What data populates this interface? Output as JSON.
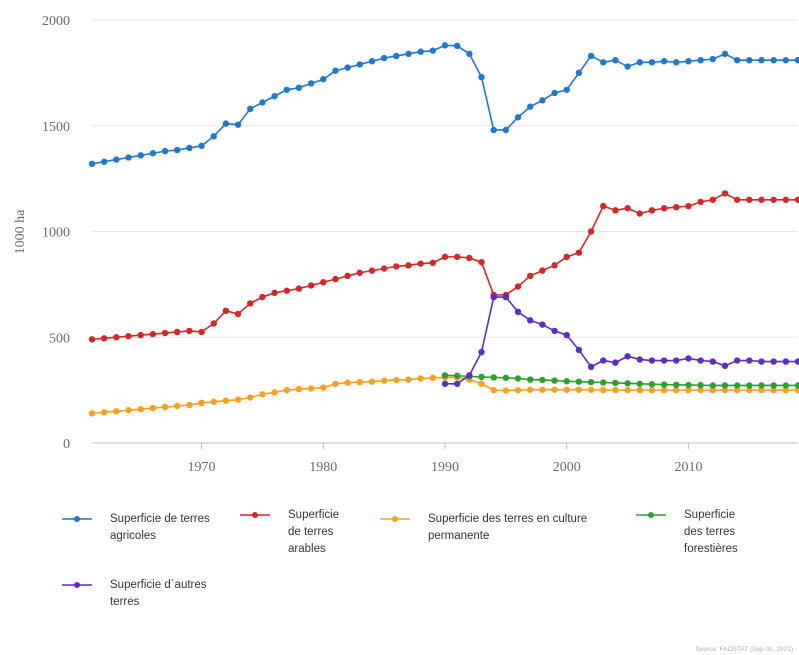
{
  "chart_data": {
    "type": "line",
    "ylabel": "1000 ha",
    "ylim": [
      0,
      2000
    ],
    "xlim": [
      1961,
      2019
    ],
    "yticks": [
      0,
      500,
      1000,
      1500,
      2000
    ],
    "xticks": [
      1970,
      1980,
      1990,
      2000,
      2010
    ],
    "grid": "horizontal",
    "legend_position": "bottom",
    "series": [
      {
        "name": "Superficie de terres agricoles",
        "color": "#1f77d4",
        "x": [
          1961,
          1962,
          1963,
          1964,
          1965,
          1966,
          1967,
          1968,
          1969,
          1970,
          1971,
          1972,
          1973,
          1974,
          1975,
          1976,
          1977,
          1978,
          1979,
          1980,
          1981,
          1982,
          1983,
          1984,
          1985,
          1986,
          1987,
          1988,
          1989,
          1990,
          1991,
          1992,
          1993,
          1994,
          1995,
          1996,
          1997,
          1998,
          1999,
          2000,
          2001,
          2002,
          2003,
          2004,
          2005,
          2006,
          2007,
          2008,
          2009,
          2010,
          2011,
          2012,
          2013,
          2014,
          2015,
          2016,
          2017,
          2018,
          2019
        ],
        "y": [
          1320,
          1330,
          1340,
          1350,
          1360,
          1370,
          1380,
          1385,
          1395,
          1405,
          1450,
          1510,
          1505,
          1580,
          1610,
          1640,
          1670,
          1680,
          1700,
          1720,
          1760,
          1775,
          1790,
          1805,
          1820,
          1830,
          1840,
          1850,
          1855,
          1880,
          1878,
          1840,
          1730,
          1480,
          1480,
          1540,
          1590,
          1620,
          1655,
          1670,
          1750,
          1830,
          1800,
          1810,
          1780,
          1800,
          1800,
          1805,
          1800,
          1805,
          1810,
          1815,
          1840,
          1810,
          1810,
          1810,
          1810,
          1810,
          1810
        ]
      },
      {
        "name": "Superficie de terres arables",
        "color": "#d62728",
        "x": [
          1961,
          1962,
          1963,
          1964,
          1965,
          1966,
          1967,
          1968,
          1969,
          1970,
          1971,
          1972,
          1973,
          1974,
          1975,
          1976,
          1977,
          1978,
          1979,
          1980,
          1981,
          1982,
          1983,
          1984,
          1985,
          1986,
          1987,
          1988,
          1989,
          1990,
          1991,
          1992,
          1993,
          1994,
          1995,
          1996,
          1997,
          1998,
          1999,
          2000,
          2001,
          2002,
          2003,
          2004,
          2005,
          2006,
          2007,
          2008,
          2009,
          2010,
          2011,
          2012,
          2013,
          2014,
          2015,
          2016,
          2017,
          2018,
          2019
        ],
        "y": [
          490,
          495,
          500,
          505,
          510,
          515,
          520,
          525,
          530,
          525,
          565,
          625,
          610,
          660,
          690,
          710,
          720,
          730,
          745,
          760,
          775,
          790,
          805,
          815,
          825,
          835,
          840,
          848,
          852,
          880,
          880,
          875,
          855,
          700,
          700,
          740,
          790,
          815,
          840,
          880,
          900,
          1000,
          1120,
          1100,
          1110,
          1085,
          1100,
          1110,
          1115,
          1120,
          1140,
          1150,
          1180,
          1150,
          1150,
          1150,
          1150,
          1150,
          1150
        ]
      },
      {
        "name": "Superficie des terres en culture permanente",
        "color": "#ff9f1a",
        "x": [
          1961,
          1962,
          1963,
          1964,
          1965,
          1966,
          1967,
          1968,
          1969,
          1970,
          1971,
          1972,
          1973,
          1974,
          1975,
          1976,
          1977,
          1978,
          1979,
          1980,
          1981,
          1982,
          1983,
          1984,
          1985,
          1986,
          1987,
          1988,
          1989,
          1990,
          1991,
          1992,
          1993,
          1994,
          1995,
          1996,
          1997,
          1998,
          1999,
          2000,
          2001,
          2002,
          2003,
          2004,
          2005,
          2006,
          2007,
          2008,
          2009,
          2010,
          2011,
          2012,
          2013,
          2014,
          2015,
          2016,
          2017,
          2018,
          2019
        ],
        "y": [
          140,
          145,
          150,
          155,
          160,
          165,
          170,
          175,
          180,
          190,
          195,
          200,
          205,
          215,
          230,
          240,
          250,
          255,
          258,
          262,
          280,
          285,
          288,
          290,
          295,
          298,
          300,
          305,
          308,
          310,
          310,
          300,
          280,
          250,
          248,
          250,
          252,
          252,
          252,
          252,
          252,
          252,
          250,
          250,
          250,
          250,
          250,
          250,
          250,
          250,
          250,
          250,
          250,
          250,
          250,
          250,
          250,
          250,
          250
        ]
      },
      {
        "name": "Superficie des terres forestières",
        "color": "#2ca02c",
        "x": [
          1990,
          1991,
          1992,
          1993,
          1994,
          1995,
          1996,
          1997,
          1998,
          1999,
          2000,
          2001,
          2002,
          2003,
          2004,
          2005,
          2006,
          2007,
          2008,
          2009,
          2010,
          2011,
          2012,
          2013,
          2014,
          2015,
          2016,
          2017,
          2018,
          2019
        ],
        "y": [
          320,
          318,
          315,
          312,
          310,
          308,
          305,
          300,
          298,
          295,
          292,
          290,
          288,
          286,
          284,
          282,
          280,
          278,
          276,
          275,
          274,
          273,
          272,
          272,
          272,
          272,
          272,
          272,
          272,
          272
        ]
      },
      {
        "name": "Superficie d`autres terres",
        "color": "#5b2dc8",
        "x": [
          1990,
          1991,
          1992,
          1993,
          1994,
          1995,
          1996,
          1997,
          1998,
          1999,
          2000,
          2001,
          2002,
          2003,
          2004,
          2005,
          2006,
          2007,
          2008,
          2009,
          2010,
          2011,
          2012,
          2013,
          2014,
          2015,
          2016,
          2017,
          2018,
          2019
        ],
        "y": [
          280,
          280,
          320,
          430,
          690,
          690,
          620,
          580,
          560,
          530,
          510,
          440,
          360,
          390,
          380,
          410,
          395,
          390,
          390,
          390,
          400,
          390,
          385,
          365,
          390,
          390,
          385,
          385,
          385,
          385
        ]
      }
    ]
  },
  "legend": [
    {
      "label": "Superficie de terres agricoles",
      "color": "#1f77d4"
    },
    {
      "label": "Superficie de terres arables",
      "color": "#d62728"
    },
    {
      "label": "Superficie des terres en culture permanente",
      "color": "#ff9f1a"
    },
    {
      "label": "Superficie des terres forestières",
      "color": "#2ca02c"
    },
    {
      "label": "Superficie d`autres terres",
      "color": "#5b2dc8"
    }
  ],
  "source": "Source: FAOSTAT (Sep 02, 2021)"
}
